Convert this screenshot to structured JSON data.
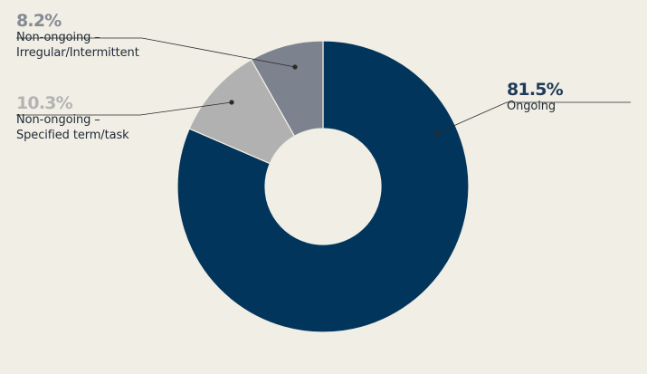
{
  "chart_data": {
    "type": "pie",
    "donut": true,
    "title": "",
    "slices": [
      {
        "label": "Ongoing",
        "value": 81.5,
        "value_label": "81.5%",
        "color": "#02355b"
      },
      {
        "label_lines": [
          "Non-ongoing –",
          "Specified term/task"
        ],
        "value": 10.3,
        "value_label": "10.3%",
        "color": "#b1b1b1"
      },
      {
        "label_lines": [
          "Non-ongoing –",
          "Irregular/Intermittent"
        ],
        "value": 8.2,
        "value_label": "8.2%",
        "color": "#7d838e"
      }
    ],
    "legend_placement": "callout labels"
  },
  "colors": {
    "background": "#f1eee5",
    "pct_ongoing": "#1f3a5a",
    "pct_specified": "#b4b4b4",
    "pct_irregular": "#858a94",
    "leader_line": "#2a2a2a"
  }
}
